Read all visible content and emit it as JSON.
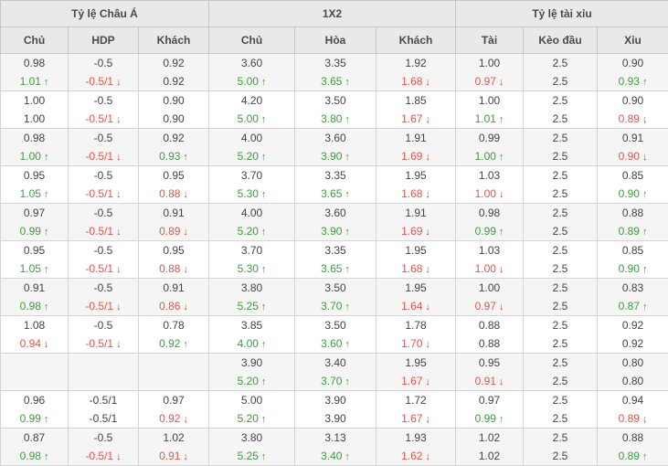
{
  "table": {
    "colors": {
      "up": "#3c9e3c",
      "down": "#e2554b",
      "down_arrow": "#ca491c",
      "header_bg": "#e9e9e9",
      "row_alt_bg": "#f5f5f5"
    },
    "groups": [
      {
        "label": "Tỷ lệ Châu Á"
      },
      {
        "label": "1X2"
      },
      {
        "label": "Tỷ lệ tài xỉu"
      }
    ],
    "columns": [
      "Chủ",
      "HDP",
      "Khách",
      "Chủ",
      "Hòa",
      "Khách",
      "Tài",
      "Kèo đầu",
      "Xỉu"
    ],
    "rows": [
      {
        "line1": [
          {
            "v": "0.98"
          },
          {
            "v": "-0.5"
          },
          {
            "v": "0.92"
          },
          {
            "v": "3.60"
          },
          {
            "v": "3.35"
          },
          {
            "v": "1.92"
          },
          {
            "v": "1.00"
          },
          {
            "v": "2.5"
          },
          {
            "v": "0.90"
          }
        ],
        "line2": [
          {
            "v": "1.01",
            "t": "up"
          },
          {
            "v": "-0.5/1",
            "t": "down"
          },
          {
            "v": "0.92"
          },
          {
            "v": "5.00",
            "t": "up"
          },
          {
            "v": "3.65",
            "t": "up"
          },
          {
            "v": "1.68",
            "t": "down"
          },
          {
            "v": "0.97",
            "t": "down"
          },
          {
            "v": "2.5"
          },
          {
            "v": "0.93",
            "t": "up"
          }
        ]
      },
      {
        "line1": [
          {
            "v": "1.00"
          },
          {
            "v": "-0.5"
          },
          {
            "v": "0.90"
          },
          {
            "v": "4.20"
          },
          {
            "v": "3.50"
          },
          {
            "v": "1.85"
          },
          {
            "v": "1.00"
          },
          {
            "v": "2.5"
          },
          {
            "v": "0.90"
          }
        ],
        "line2": [
          {
            "v": "1.00"
          },
          {
            "v": "-0.5/1",
            "t": "down"
          },
          {
            "v": "0.90"
          },
          {
            "v": "5.00",
            "t": "up"
          },
          {
            "v": "3.80",
            "t": "up"
          },
          {
            "v": "1.67",
            "t": "down"
          },
          {
            "v": "1.01",
            "t": "up"
          },
          {
            "v": "2.5"
          },
          {
            "v": "0.89",
            "t": "down"
          }
        ]
      },
      {
        "line1": [
          {
            "v": "0.98"
          },
          {
            "v": "-0.5"
          },
          {
            "v": "0.92"
          },
          {
            "v": "4.00"
          },
          {
            "v": "3.60"
          },
          {
            "v": "1.91"
          },
          {
            "v": "0.99"
          },
          {
            "v": "2.5"
          },
          {
            "v": "0.91"
          }
        ],
        "line2": [
          {
            "v": "1.00",
            "t": "up"
          },
          {
            "v": "-0.5/1",
            "t": "down"
          },
          {
            "v": "0.93",
            "t": "up"
          },
          {
            "v": "5.20",
            "t": "up"
          },
          {
            "v": "3.90",
            "t": "up"
          },
          {
            "v": "1.69",
            "t": "down"
          },
          {
            "v": "1.00",
            "t": "up"
          },
          {
            "v": "2.5"
          },
          {
            "v": "0.90",
            "t": "down"
          }
        ]
      },
      {
        "line1": [
          {
            "v": "0.95"
          },
          {
            "v": "-0.5"
          },
          {
            "v": "0.95"
          },
          {
            "v": "3.70"
          },
          {
            "v": "3.35"
          },
          {
            "v": "1.95"
          },
          {
            "v": "1.03"
          },
          {
            "v": "2.5"
          },
          {
            "v": "0.85"
          }
        ],
        "line2": [
          {
            "v": "1.05",
            "t": "up"
          },
          {
            "v": "-0.5/1",
            "t": "down"
          },
          {
            "v": "0.88",
            "t": "down"
          },
          {
            "v": "5.30",
            "t": "up"
          },
          {
            "v": "3.65",
            "t": "up"
          },
          {
            "v": "1.68",
            "t": "down"
          },
          {
            "v": "1.00",
            "t": "down"
          },
          {
            "v": "2.5"
          },
          {
            "v": "0.90",
            "t": "up"
          }
        ]
      },
      {
        "line1": [
          {
            "v": "0.97"
          },
          {
            "v": "-0.5"
          },
          {
            "v": "0.91"
          },
          {
            "v": "4.00"
          },
          {
            "v": "3.60"
          },
          {
            "v": "1.91"
          },
          {
            "v": "0.98"
          },
          {
            "v": "2.5"
          },
          {
            "v": "0.88"
          }
        ],
        "line2": [
          {
            "v": "0.99",
            "t": "up"
          },
          {
            "v": "-0.5/1",
            "t": "down"
          },
          {
            "v": "0.89",
            "t": "down"
          },
          {
            "v": "5.20",
            "t": "up"
          },
          {
            "v": "3.90",
            "t": "up"
          },
          {
            "v": "1.69",
            "t": "down"
          },
          {
            "v": "0.99",
            "t": "up"
          },
          {
            "v": "2.5"
          },
          {
            "v": "0.89",
            "t": "up"
          }
        ]
      },
      {
        "line1": [
          {
            "v": "0.95"
          },
          {
            "v": "-0.5"
          },
          {
            "v": "0.95"
          },
          {
            "v": "3.70"
          },
          {
            "v": "3.35"
          },
          {
            "v": "1.95"
          },
          {
            "v": "1.03"
          },
          {
            "v": "2.5"
          },
          {
            "v": "0.85"
          }
        ],
        "line2": [
          {
            "v": "1.05",
            "t": "up"
          },
          {
            "v": "-0.5/1",
            "t": "down"
          },
          {
            "v": "0.88",
            "t": "down"
          },
          {
            "v": "5.30",
            "t": "up"
          },
          {
            "v": "3.65",
            "t": "up"
          },
          {
            "v": "1.68",
            "t": "down"
          },
          {
            "v": "1.00",
            "t": "down"
          },
          {
            "v": "2.5"
          },
          {
            "v": "0.90",
            "t": "up"
          }
        ]
      },
      {
        "line1": [
          {
            "v": "0.91"
          },
          {
            "v": "-0.5"
          },
          {
            "v": "0.91"
          },
          {
            "v": "3.80"
          },
          {
            "v": "3.50"
          },
          {
            "v": "1.95"
          },
          {
            "v": "1.00"
          },
          {
            "v": "2.5"
          },
          {
            "v": "0.83"
          }
        ],
        "line2": [
          {
            "v": "0.98",
            "t": "up"
          },
          {
            "v": "-0.5/1",
            "t": "down"
          },
          {
            "v": "0.86",
            "t": "down"
          },
          {
            "v": "5.25",
            "t": "up"
          },
          {
            "v": "3.70",
            "t": "up"
          },
          {
            "v": "1.64",
            "t": "down"
          },
          {
            "v": "0.97",
            "t": "down"
          },
          {
            "v": "2.5"
          },
          {
            "v": "0.87",
            "t": "up"
          }
        ]
      },
      {
        "line1": [
          {
            "v": "1.08"
          },
          {
            "v": "-0.5"
          },
          {
            "v": "0.78"
          },
          {
            "v": "3.85"
          },
          {
            "v": "3.50"
          },
          {
            "v": "1.78"
          },
          {
            "v": "0.88"
          },
          {
            "v": "2.5"
          },
          {
            "v": "0.92"
          }
        ],
        "line2": [
          {
            "v": "0.94",
            "t": "down"
          },
          {
            "v": "-0.5/1",
            "t": "down"
          },
          {
            "v": "0.92",
            "t": "up"
          },
          {
            "v": "4.00",
            "t": "up"
          },
          {
            "v": "3.60",
            "t": "up"
          },
          {
            "v": "1.70",
            "t": "down"
          },
          {
            "v": "0.88"
          },
          {
            "v": "2.5"
          },
          {
            "v": "0.92"
          }
        ]
      },
      {
        "line1": [
          {
            "v": ""
          },
          {
            "v": ""
          },
          {
            "v": ""
          },
          {
            "v": "3.90"
          },
          {
            "v": "3.40"
          },
          {
            "v": "1.95"
          },
          {
            "v": "0.95"
          },
          {
            "v": "2.5"
          },
          {
            "v": "0.80"
          }
        ],
        "line2": [
          {
            "v": ""
          },
          {
            "v": ""
          },
          {
            "v": ""
          },
          {
            "v": "5.20",
            "t": "up"
          },
          {
            "v": "3.70",
            "t": "up"
          },
          {
            "v": "1.67",
            "t": "down"
          },
          {
            "v": "0.91",
            "t": "down"
          },
          {
            "v": "2.5"
          },
          {
            "v": "0.80"
          }
        ]
      },
      {
        "line1": [
          {
            "v": "0.96"
          },
          {
            "v": "-0.5/1"
          },
          {
            "v": "0.97"
          },
          {
            "v": "5.00"
          },
          {
            "v": "3.90"
          },
          {
            "v": "1.72"
          },
          {
            "v": "0.97"
          },
          {
            "v": "2.5"
          },
          {
            "v": "0.94"
          }
        ],
        "line2": [
          {
            "v": "0.99",
            "t": "up"
          },
          {
            "v": "-0.5/1"
          },
          {
            "v": "0.92",
            "t": "down"
          },
          {
            "v": "5.20",
            "t": "up"
          },
          {
            "v": "3.90"
          },
          {
            "v": "1.67",
            "t": "down"
          },
          {
            "v": "0.99",
            "t": "up"
          },
          {
            "v": "2.5"
          },
          {
            "v": "0.89",
            "t": "down"
          }
        ]
      },
      {
        "line1": [
          {
            "v": "0.87"
          },
          {
            "v": "-0.5"
          },
          {
            "v": "1.02"
          },
          {
            "v": "3.80"
          },
          {
            "v": "3.13"
          },
          {
            "v": "1.93"
          },
          {
            "v": "1.02"
          },
          {
            "v": "2.5"
          },
          {
            "v": "0.88"
          }
        ],
        "line2": [
          {
            "v": "0.98",
            "t": "up"
          },
          {
            "v": "-0.5/1",
            "t": "down"
          },
          {
            "v": "0.91",
            "t": "down"
          },
          {
            "v": "5.25",
            "t": "up"
          },
          {
            "v": "3.40",
            "t": "up"
          },
          {
            "v": "1.62",
            "t": "down"
          },
          {
            "v": "1.02"
          },
          {
            "v": "2.5"
          },
          {
            "v": "0.89",
            "t": "up"
          }
        ]
      }
    ]
  }
}
